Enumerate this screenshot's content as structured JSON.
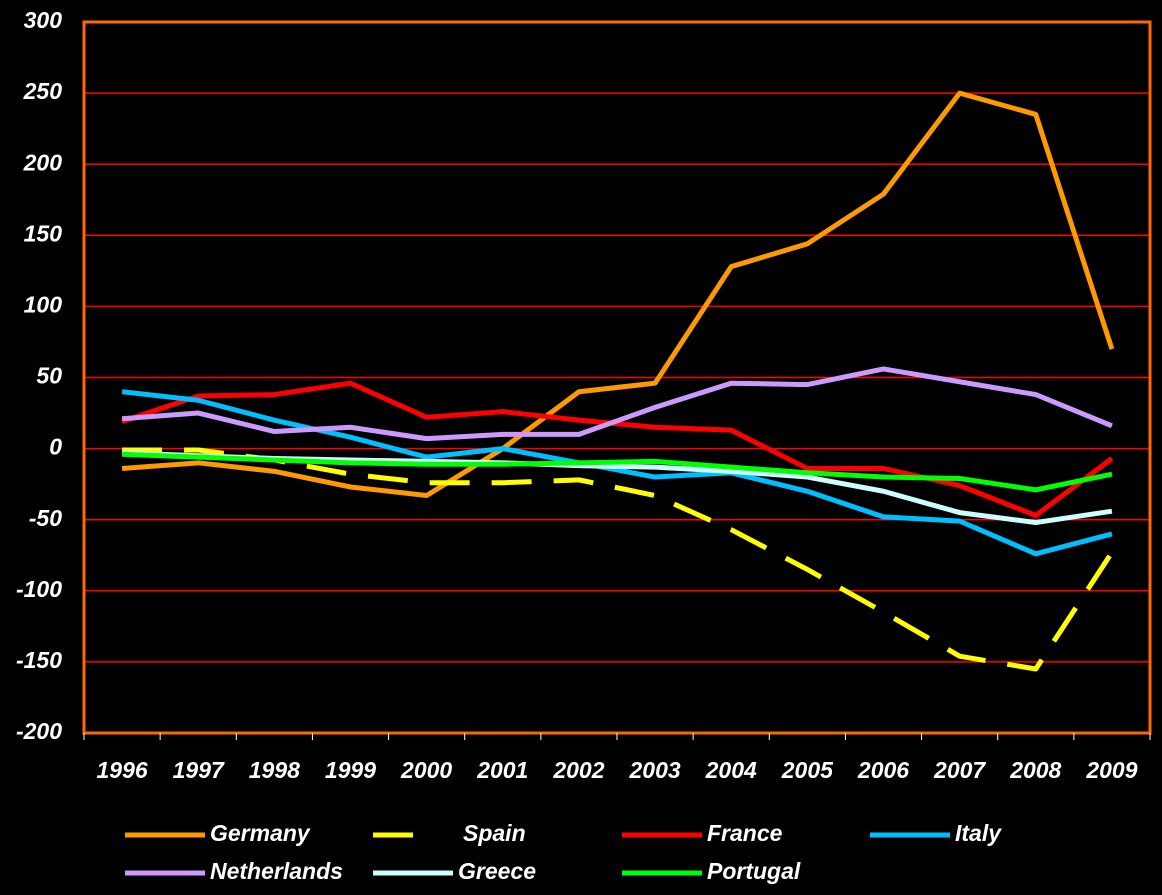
{
  "chart_data": {
    "type": "line",
    "categories": [
      "1996",
      "1997",
      "1998",
      "1999",
      "2000",
      "2001",
      "2002",
      "2003",
      "2004",
      "2005",
      "2006",
      "2007",
      "2008",
      "2009"
    ],
    "series": [
      {
        "name": "Germany",
        "color": "#ff9900",
        "dashed": false,
        "values": [
          -14,
          -10,
          -16,
          -27,
          -33,
          0,
          40,
          46,
          128,
          144,
          179,
          250,
          235,
          70
        ]
      },
      {
        "name": "Spain",
        "color": "#ffff00",
        "dashed": true,
        "values": [
          -1,
          -1,
          -8,
          -18,
          -24,
          -24,
          -22,
          -33,
          -57,
          -85,
          -115,
          -146,
          -155,
          -73
        ]
      },
      {
        "name": "France",
        "color": "#ff0000",
        "dashed": false,
        "values": [
          19,
          37,
          38,
          46,
          22,
          26,
          20,
          15,
          13,
          -14,
          -14,
          -26,
          -47,
          -7
        ]
      },
      {
        "name": "Italy",
        "color": "#00bfff",
        "dashed": false,
        "values": [
          40,
          34,
          20,
          8,
          -6,
          0,
          -10,
          -20,
          -17,
          -30,
          -48,
          -51,
          -74,
          -60
        ]
      },
      {
        "name": "Netherlands",
        "color": "#cc99ff",
        "dashed": false,
        "values": [
          21,
          25,
          12,
          15,
          7,
          10,
          10,
          29,
          46,
          45,
          56,
          47,
          38,
          16
        ]
      },
      {
        "name": "Greece",
        "color": "#ccffff",
        "dashed": false,
        "values": [
          -3,
          -5,
          -7,
          -8,
          -9,
          -10,
          -12,
          -13,
          -16,
          -20,
          -30,
          -45,
          -52,
          -44
        ]
      },
      {
        "name": "Portugal",
        "color": "#00ff00",
        "dashed": false,
        "values": [
          -4,
          -6,
          -8,
          -10,
          -11,
          -11,
          -10,
          -9,
          -13,
          -17,
          -20,
          -21,
          -29,
          -18
        ]
      }
    ],
    "ylim": [
      -200,
      300
    ],
    "yticks": [
      -200,
      -150,
      -100,
      -50,
      0,
      50,
      100,
      150,
      200,
      250,
      300
    ],
    "grid": true
  }
}
